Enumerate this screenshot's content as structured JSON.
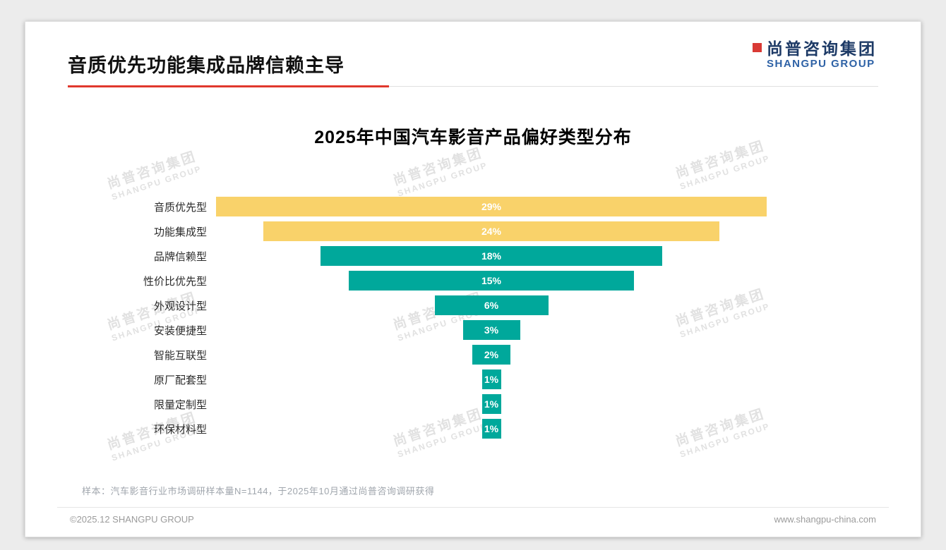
{
  "header": {
    "title": "音质优先功能集成品牌信赖主导"
  },
  "logo": {
    "cn": "尚普咨询集团",
    "en": "SHANGPU GROUP"
  },
  "watermark": {
    "cn": "尚普咨询集团",
    "en": "SHANGPU GROUP"
  },
  "chart_data": {
    "type": "bar",
    "orientation": "horizontal-centered-funnel",
    "title": "2025年中国汽车影音产品偏好类型分布",
    "categories": [
      "音质优先型",
      "功能集成型",
      "品牌信赖型",
      "性价比优先型",
      "外观设计型",
      "安装便捷型",
      "智能互联型",
      "原厂配套型",
      "限量定制型",
      "环保材料型"
    ],
    "values": [
      29,
      24,
      18,
      15,
      6,
      3,
      2,
      1,
      1,
      1
    ],
    "labels": [
      "29%",
      "24%",
      "18%",
      "15%",
      "6%",
      "3%",
      "2%",
      "1%",
      "1%",
      "1%"
    ],
    "bar_colors": [
      "#f9d26a",
      "#f9d26a",
      "#00a89b",
      "#00a89b",
      "#00a89b",
      "#00a89b",
      "#00a89b",
      "#00a89b",
      "#00a89b",
      "#00a89b"
    ],
    "value_label_color": "#ffffff",
    "xlim": [
      0,
      29
    ],
    "grid": false,
    "legend": false
  },
  "colors": {
    "accent_red": "#e0382d",
    "yellow": "#f9d26a",
    "teal": "#00a89b",
    "logo_navy": "#1d3a66",
    "logo_blue": "#2e62a6"
  },
  "footnote": "样本：汽车影音行业市场调研样本量N=1144，于2025年10月通过尚普咨询调研获得",
  "footer": {
    "left": "©2025.12 SHANGPU GROUP",
    "right": "www.shangpu-china.com"
  }
}
